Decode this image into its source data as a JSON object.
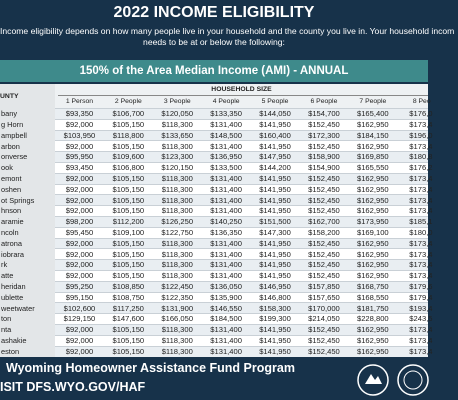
{
  "header": {
    "title": "2022 INCOME ELIGIBILITY",
    "intro": [
      "Income eligibility depends on how many people live in your household and the county you live in. Your household incom",
      "needs to be at or below the following:"
    ]
  },
  "banner": "150% of the Area Median Income (AMI) - ANNUAL",
  "table": {
    "group_label": "HOUSEHOLD SIZE",
    "columns": [
      "UNTY",
      "1 Person",
      "2 People",
      "3 People",
      "4 People",
      "5 People",
      "6 People",
      "7 People",
      "8 Peo"
    ],
    "rows": [
      [
        "bany",
        "$93,350",
        "$106,700",
        "$120,050",
        "$133,350",
        "$144,050",
        "$154,700",
        "$165,400",
        "$176,0"
      ],
      [
        "g Horn",
        "$92,000",
        "$105,150",
        "$118,300",
        "$131,400",
        "$141,950",
        "$152,450",
        "$162,950",
        "$173,4"
      ],
      [
        "ampbell",
        "$103,950",
        "$118,800",
        "$133,650",
        "$148,500",
        "$160,400",
        "$172,300",
        "$184,150",
        "$196,0"
      ],
      [
        "arbon",
        "$92,000",
        "$105,150",
        "$118,300",
        "$131,400",
        "$141,950",
        "$152,450",
        "$162,950",
        "$173,4"
      ],
      [
        "onverse",
        "$95,950",
        "$109,600",
        "$123,300",
        "$136,950",
        "$147,950",
        "$158,900",
        "$169,850",
        "$180,8"
      ],
      [
        "ook",
        "$93,450",
        "$106,800",
        "$120,150",
        "$133,500",
        "$144,200",
        "$154,900",
        "$165,550",
        "$176,2"
      ],
      [
        "emont",
        "$92,000",
        "$105,150",
        "$118,300",
        "$131,400",
        "$141,950",
        "$152,450",
        "$162,950",
        "$173,4"
      ],
      [
        "oshen",
        "$92,000",
        "$105,150",
        "$118,300",
        "$131,400",
        "$141,950",
        "$152,450",
        "$162,950",
        "$173,4"
      ],
      [
        "ot Springs",
        "$92,000",
        "$105,150",
        "$118,300",
        "$131,400",
        "$141,950",
        "$152,450",
        "$162,950",
        "$173,4"
      ],
      [
        "hnson",
        "$92,000",
        "$105,150",
        "$118,300",
        "$131,400",
        "$141,950",
        "$152,450",
        "$162,950",
        "$173,4"
      ],
      [
        "aramie",
        "$98,200",
        "$112,200",
        "$126,250",
        "$140,250",
        "$151,500",
        "$162,700",
        "$173,950",
        "$185,1"
      ],
      [
        "ncoln",
        "$95,450",
        "$109,100",
        "$122,750",
        "$136,350",
        "$147,300",
        "$158,200",
        "$169,100",
        "$180,0"
      ],
      [
        "atrona",
        "$92,000",
        "$105,150",
        "$118,300",
        "$131,400",
        "$141,950",
        "$152,450",
        "$162,950",
        "$173,4"
      ],
      [
        "iobrara",
        "$92,000",
        "$105,150",
        "$118,300",
        "$131,400",
        "$141,950",
        "$152,450",
        "$162,950",
        "$173,4"
      ],
      [
        "rk",
        "$92,000",
        "$105,150",
        "$118,300",
        "$131,400",
        "$141,950",
        "$152,450",
        "$162,950",
        "$173,4"
      ],
      [
        "atte",
        "$92,000",
        "$105,150",
        "$118,300",
        "$131,400",
        "$141,950",
        "$152,450",
        "$162,950",
        "$173,4"
      ],
      [
        "heridan",
        "$95,250",
        "$108,850",
        "$122,450",
        "$136,050",
        "$146,950",
        "$157,850",
        "$168,750",
        "$179,6"
      ],
      [
        "ublette",
        "$95,150",
        "$108,750",
        "$122,350",
        "$135,900",
        "$146,800",
        "$157,650",
        "$168,550",
        "$179,4"
      ],
      [
        "weetwater",
        "$102,600",
        "$117,250",
        "$131,900",
        "$146,550",
        "$158,300",
        "$170,000",
        "$181,750",
        "$193,4"
      ],
      [
        "ton",
        "$129,150",
        "$147,600",
        "$166,050",
        "$184,500",
        "$199,300",
        "$214,050",
        "$228,800",
        "$243,5"
      ],
      [
        "nta",
        "$92,000",
        "$105,150",
        "$118,300",
        "$131,400",
        "$141,950",
        "$152,450",
        "$162,950",
        "$173,4"
      ],
      [
        "ashakie",
        "$92,000",
        "$105,150",
        "$118,300",
        "$131,400",
        "$141,950",
        "$152,450",
        "$162,950",
        "$173,4"
      ],
      [
        "eston",
        "$92,000",
        "$105,150",
        "$118,300",
        "$131,400",
        "$141,950",
        "$152,450",
        "$162,950",
        "$173,4"
      ]
    ]
  },
  "footer": {
    "program": "Wyoming Homeowner Assistance Fund Program",
    "visit": "ISIT DFS.WYO.GOV/HAF"
  }
}
